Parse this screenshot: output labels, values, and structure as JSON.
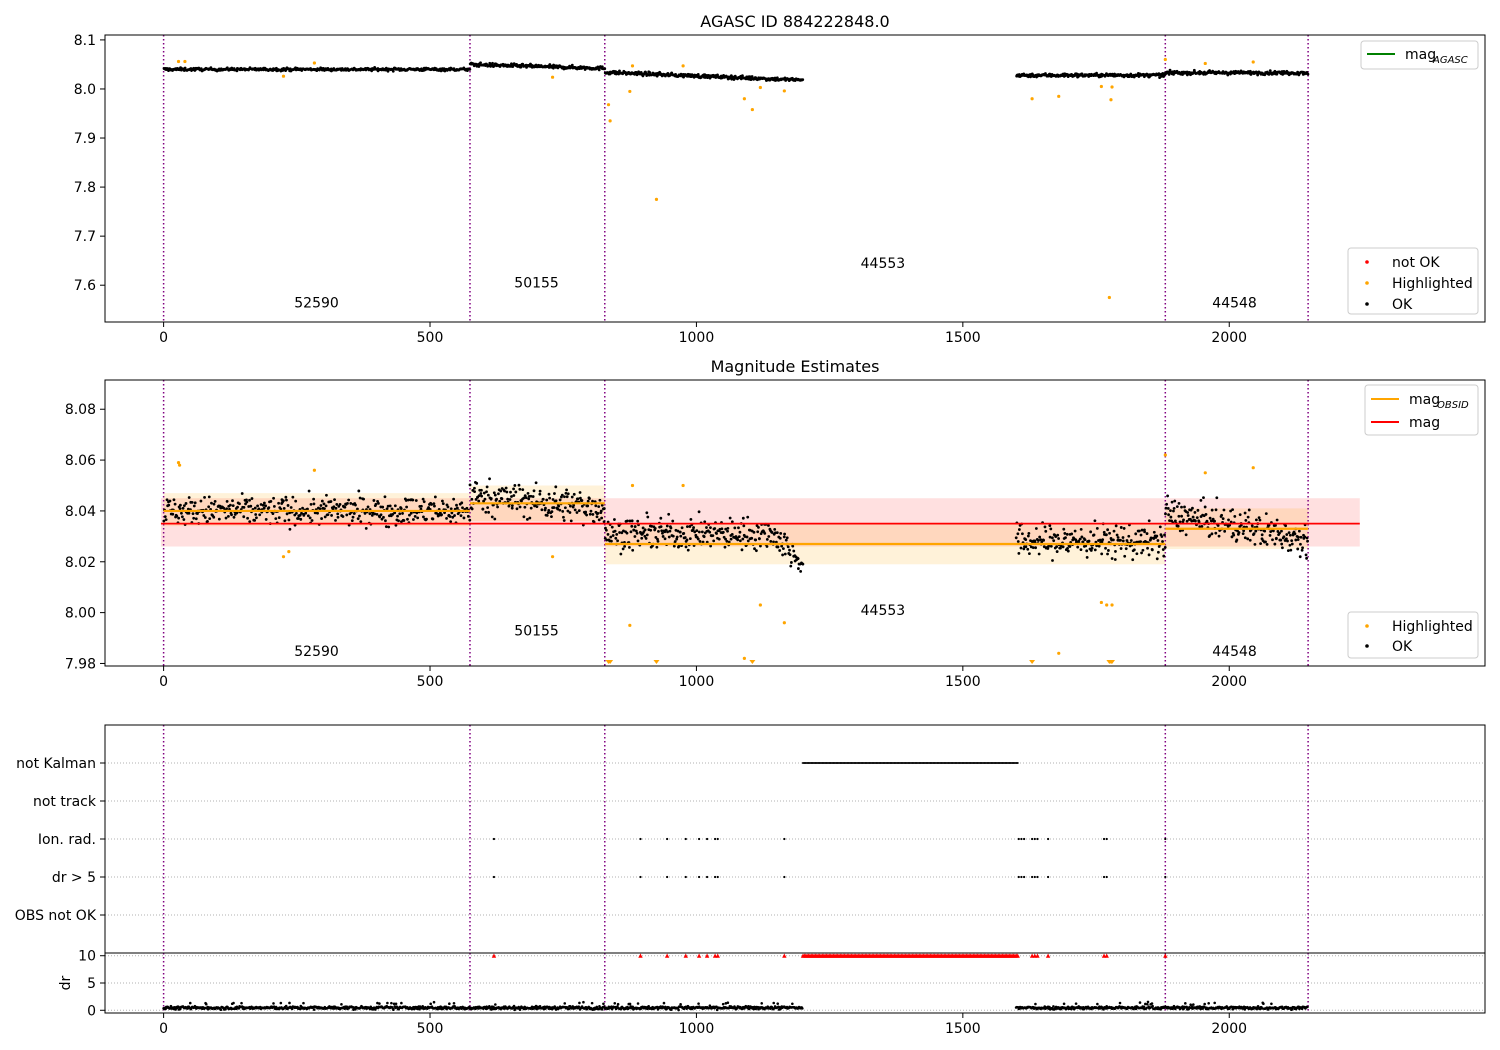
{
  "chart_data": [
    {
      "type": "scatter",
      "title": "AGASC ID 884222848.0",
      "xlim": [
        -110,
        2480
      ],
      "ylim": [
        7.525,
        8.11
      ],
      "x_ticks": [
        "0",
        "500",
        "1000",
        "1500",
        "2000"
      ],
      "x_tick_values": [
        0,
        500,
        1000,
        1500,
        2000
      ],
      "y_ticks": [
        "7.6",
        "7.7",
        "7.8",
        "7.9",
        "8.0",
        "8.1"
      ],
      "y_tick_values": [
        7.6,
        7.7,
        7.8,
        7.9,
        8.0,
        8.1
      ],
      "obs_boundaries": [
        0,
        575,
        828,
        1880,
        2148
      ],
      "obs_labels": [
        {
          "text": "52590",
          "x": 287,
          "y": 7.555
        },
        {
          "text": "50155",
          "x": 700,
          "y": 7.595
        },
        {
          "text": "44553",
          "x": 1350,
          "y": 7.635
        },
        {
          "text": "44548",
          "x": 2010,
          "y": 7.555
        }
      ],
      "legend_upper": [
        {
          "name": "mag",
          "subscript": "AGASC",
          "color": "#008000"
        }
      ],
      "legend_lower": [
        {
          "name": "not OK",
          "color": "#ff0000"
        },
        {
          "name": "Highlighted",
          "color": "#ffa500"
        },
        {
          "name": "OK",
          "color": "#000000"
        }
      ],
      "ok_segments": [
        {
          "x0": 0,
          "x1": 575,
          "level": 8.04,
          "noise": 0.005,
          "n": 420
        },
        {
          "x0": 575,
          "x1": 828,
          "level": 8.046,
          "noise": 0.006,
          "n": 210
        },
        {
          "x0": 828,
          "x1": 1200,
          "level": 8.026,
          "noise": 0.006,
          "n": 300
        },
        {
          "x0": 1600,
          "x1": 1880,
          "level": 8.028,
          "noise": 0.006,
          "n": 230
        },
        {
          "x0": 1880,
          "x1": 2148,
          "level": 8.033,
          "noise": 0.006,
          "n": 220
        }
      ],
      "highlighted": [
        [
          28,
          8.056
        ],
        [
          40,
          8.056
        ],
        [
          225,
          8.026
        ],
        [
          283,
          8.053
        ],
        [
          730,
          8.024
        ],
        [
          835,
          7.968
        ],
        [
          838,
          7.935
        ],
        [
          875,
          7.995
        ],
        [
          880,
          8.047
        ],
        [
          925,
          7.775
        ],
        [
          975,
          8.047
        ],
        [
          1090,
          7.98
        ],
        [
          1105,
          7.958
        ],
        [
          1120,
          8.003
        ],
        [
          1165,
          7.996
        ],
        [
          1630,
          7.98
        ],
        [
          1680,
          7.985
        ],
        [
          1760,
          8.005
        ],
        [
          1775,
          7.575
        ],
        [
          1778,
          7.978
        ],
        [
          1780,
          8.004
        ],
        [
          1880,
          8.06
        ],
        [
          1955,
          8.052
        ],
        [
          2045,
          8.055
        ]
      ],
      "not_ok": []
    },
    {
      "type": "scatter",
      "title": "Magnitude Estimates",
      "xlim": [
        -110,
        2480
      ],
      "ylim": [
        7.979,
        8.0915
      ],
      "x_ticks": [
        "0",
        "500",
        "1000",
        "1500",
        "2000"
      ],
      "x_tick_values": [
        0,
        500,
        1000,
        1500,
        2000
      ],
      "y_ticks": [
        "7.98",
        "8.00",
        "8.02",
        "8.04",
        "8.06",
        "8.08"
      ],
      "y_tick_values": [
        7.98,
        8.0,
        8.02,
        8.04,
        8.06,
        8.08
      ],
      "obs_boundaries": [
        0,
        575,
        828,
        1880,
        2148
      ],
      "obs_labels": [
        {
          "text": "52590",
          "x": 287,
          "y": 7.983
        },
        {
          "text": "50155",
          "x": 700,
          "y": 7.991
        },
        {
          "text": "44553",
          "x": 1350,
          "y": 7.999
        },
        {
          "text": "44548",
          "x": 2010,
          "y": 7.983
        }
      ],
      "mag_line": {
        "value": 8.035,
        "band": [
          8.026,
          8.045
        ],
        "x0": -5,
        "x1": 2245,
        "color": "#ff0000"
      },
      "obsid_mags": [
        {
          "x0": 0,
          "x1": 575,
          "value": 8.04,
          "band": [
            8.034,
            8.047
          ]
        },
        {
          "x0": 575,
          "x1": 828,
          "value": 8.043,
          "band": [
            8.036,
            8.05
          ]
        },
        {
          "x0": 828,
          "x1": 1880,
          "value": 8.027,
          "band": [
            8.019,
            8.035
          ]
        },
        {
          "x0": 1880,
          "x1": 2148,
          "value": 8.033,
          "band": [
            8.025,
            8.041
          ]
        }
      ],
      "legend_upper": [
        {
          "name": "mag",
          "subscript": "OBSID",
          "color": "#ffa500"
        },
        {
          "name": "mag",
          "subscript": "",
          "color": "#ff0000"
        }
      ],
      "legend_lower": [
        {
          "name": "Highlighted",
          "color": "#ffa500"
        },
        {
          "name": "OK",
          "color": "#000000"
        }
      ],
      "highlighted": [
        [
          28,
          8.059
        ],
        [
          30,
          8.058
        ],
        [
          225,
          8.022
        ],
        [
          235,
          8.024
        ],
        [
          283,
          8.056
        ],
        [
          730,
          8.022
        ],
        [
          875,
          7.995
        ],
        [
          880,
          8.05
        ],
        [
          975,
          8.05
        ],
        [
          1090,
          7.982
        ],
        [
          1120,
          8.003
        ],
        [
          1165,
          7.996
        ],
        [
          1760,
          8.004
        ],
        [
          1770,
          8.003
        ],
        [
          1780,
          8.003
        ],
        [
          1680,
          7.984
        ],
        [
          1880,
          8.062
        ],
        [
          1955,
          8.055
        ],
        [
          2045,
          8.057
        ]
      ],
      "floored": [
        835,
        838,
        925,
        1105,
        1630,
        1775,
        1778,
        1780
      ]
    },
    {
      "type": "scatter",
      "title": "",
      "xlim": [
        -110,
        2480
      ],
      "categories": [
        "not Kalman",
        "not track",
        "Ion. rad.",
        "dr > 5",
        "OBS not OK"
      ],
      "x_ticks": [
        "0",
        "500",
        "1000",
        "1500",
        "2000"
      ],
      "x_tick_values": [
        0,
        500,
        1000,
        1500,
        2000
      ],
      "not_kalman_range": [
        1200,
        1605
      ],
      "ion_rad_x": [
        620,
        895,
        945,
        980,
        1005,
        1020,
        1035,
        1040,
        1165,
        1605,
        1610,
        1615,
        1630,
        1635,
        1640,
        1660,
        1765,
        1770,
        1880
      ],
      "dr5_x": [
        620,
        895,
        945,
        980,
        1005,
        1020,
        1035,
        1040,
        1165,
        1605,
        1610,
        1615,
        1630,
        1635,
        1640,
        1660,
        1765,
        1770,
        1880
      ],
      "obs_boundaries": [
        0,
        575,
        828,
        1880,
        2148
      ]
    },
    {
      "type": "scatter",
      "title": "",
      "xlim": [
        -110,
        2480
      ],
      "ylim": [
        -0.5,
        10.5
      ],
      "ylabel": "dr",
      "y_ticks": [
        "0",
        "5",
        "10"
      ],
      "y_tick_values": [
        0,
        5,
        10
      ],
      "x_ticks": [
        "0",
        "500",
        "1000",
        "1500",
        "2000"
      ],
      "x_tick_values": [
        0,
        500,
        1000,
        1500,
        2000
      ],
      "obs_boundaries": [
        0,
        575,
        828,
        1880,
        2148
      ],
      "dr_segments": [
        [
          0,
          575
        ],
        [
          575,
          828
        ],
        [
          828,
          1200
        ],
        [
          1600,
          1880
        ],
        [
          1880,
          2148
        ]
      ],
      "red_markers_x": [
        620,
        895,
        945,
        980,
        1005,
        1020,
        1035,
        1040,
        1165,
        1630,
        1635,
        1640,
        1660,
        1765,
        1770,
        1880
      ],
      "red_marker_range": [
        1200,
        1605
      ],
      "red_marker_value": 10
    }
  ]
}
